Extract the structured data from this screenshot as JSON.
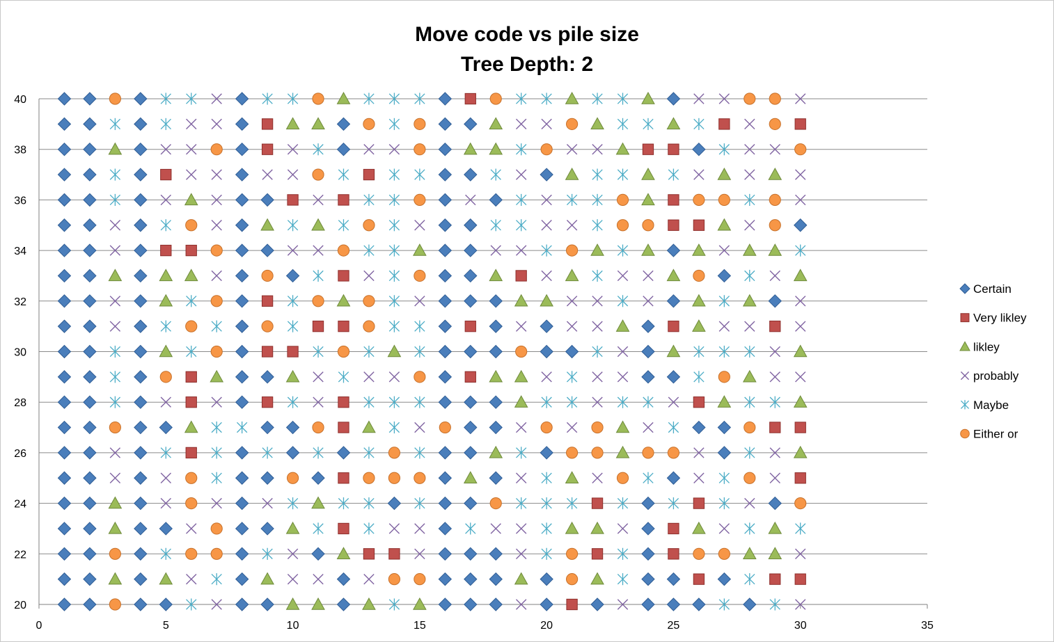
{
  "chart_data": {
    "type": "scatter",
    "title": [
      "Move code vs pile size",
      "Tree Depth: 2"
    ],
    "xlabel": "",
    "ylabel": "",
    "xlim": [
      0,
      35
    ],
    "ylim": [
      20,
      40
    ],
    "x_ticks": [
      0,
      5,
      10,
      15,
      20,
      25,
      30,
      35
    ],
    "y_ticks": [
      20,
      22,
      24,
      26,
      28,
      30,
      32,
      34,
      36,
      38,
      40
    ],
    "gridlines": "horizontal",
    "legend_position": "right",
    "colors": {
      "Certain": "#4a7ebb",
      "Very likley": "#c0504d",
      "likley": "#9bbb59",
      "probably": "#8064a2",
      "Maybe": "#4bacc6",
      "Either or": "#f79646"
    },
    "series": [
      {
        "name": "Certain",
        "marker": "diamond"
      },
      {
        "name": "Very likley",
        "marker": "square"
      },
      {
        "name": "likley",
        "marker": "triangle"
      },
      {
        "name": "probably",
        "marker": "x"
      },
      {
        "name": "Maybe",
        "marker": "star"
      },
      {
        "name": "Either or",
        "marker": "circle"
      }
    ],
    "x": [
      1,
      2,
      3,
      4,
      5,
      6,
      7,
      8,
      9,
      10,
      11,
      12,
      13,
      14,
      15,
      16,
      17,
      18,
      19,
      20,
      21,
      22,
      23,
      24,
      25,
      26,
      27,
      28,
      29,
      30
    ],
    "code_key": {
      "D": "Certain",
      "S": "Very likley",
      "T": "likley",
      "X": "probably",
      "M": "Maybe",
      "O": "Either or"
    },
    "rows": [
      {
        "y": 40,
        "codes": "DDODMMXDMMOTMMMDSOMMTMMTDXXOOX"
      },
      {
        "y": 39,
        "codes": "DDMDMXXDSTTDOMODDTXXOTMMTMSXOS"
      },
      {
        "y": 38,
        "codes": "DDTDXXODSXMDXXODTTMOXXTSSDMXXO"
      },
      {
        "y": 37,
        "codes": "DDMDSXXDXXOMSMMDDMXDTMMTMXTXTX"
      },
      {
        "y": 36,
        "codes": "DDMDXTXDDSXSMMODXDMXMMOTSOOMOX"
      },
      {
        "y": 35,
        "codes": "DDXDMOXDTMTMOMXDDMMXXMOOSSTXOD"
      },
      {
        "y": 34,
        "codes": "DDXDSSODDXXOMMTDDXXMOTMTDTXTTM"
      },
      {
        "y": 33,
        "codes": "DDTDTTXDODMSXMODDTSXTMXXTODMXT"
      },
      {
        "y": 32,
        "codes": "DDXDTMODSMOTOMXDDDTTXXMXDTMTDX"
      },
      {
        "y": 31,
        "codes": "DDXDMOMDOMSSOMMDSDXDXXTDSTXXSX"
      },
      {
        "y": 30,
        "codes": "DDMDTMODSSMOMTMDDDODDMXDTMMMXT"
      },
      {
        "y": 29,
        "codes": "DDMDOSTDDTXMXXODSTTXMXXDDMOTXX"
      },
      {
        "y": 28,
        "codes": "DDMDXSXDSMXSMMMDDDTMMXMMXSTMMT"
      },
      {
        "y": 27,
        "codes": "DDODDTMMDDOSTMXODDXOXOTXMDDOSS"
      },
      {
        "y": 26,
        "codes": "DDXDMSMDMDMDMOMDDTMDOOTOOXDMXT"
      },
      {
        "y": 25,
        "codes": "DDXDXOMDDODSOOODTDXMTXOMDXMOXS"
      },
      {
        "y": 24,
        "codes": "DDTDXOXDXMTMMDMDDOMMMSMDMSMXDO"
      },
      {
        "y": 23,
        "codes": "DDTDDXODDTMSMXXDMXXMTTXDSTXMTM"
      },
      {
        "y": 22,
        "codes": "DDODMOODMXDTSSXDDDXMOSMDSOOTTX"
      },
      {
        "y": 21,
        "codes": "DDTDTXMDTXXDXOODDDTDOTMDDSDMSS"
      },
      {
        "y": 20,
        "codes": "DDODDMXDDTTDTMTDDDXDSDXDDDMDMX"
      }
    ]
  }
}
